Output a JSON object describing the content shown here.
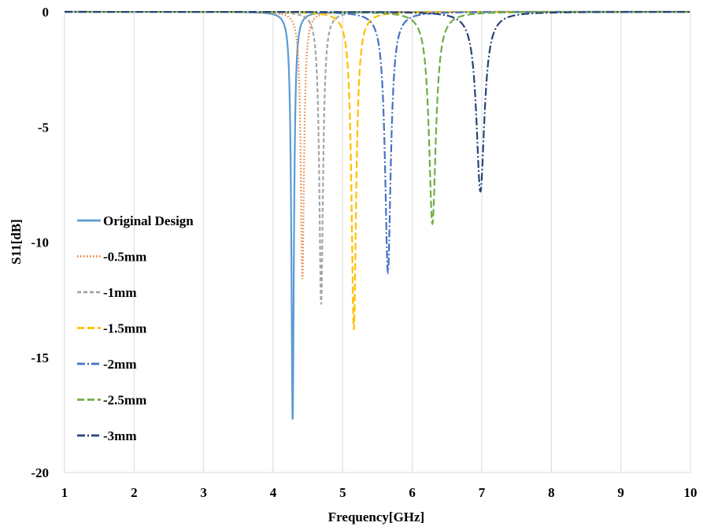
{
  "chart_data": {
    "type": "line",
    "title": "",
    "xlabel": "Frequency[GHz]",
    "ylabel": "S11[dB]",
    "xlim": [
      1,
      10
    ],
    "ylim": [
      -20,
      0
    ],
    "xticks": [
      1,
      2,
      3,
      4,
      5,
      6,
      7,
      8,
      9,
      10
    ],
    "yticks": [
      0,
      -5,
      -10,
      -15,
      -20
    ],
    "grid": "vertical",
    "legend_position": "left-inside",
    "series": [
      {
        "name": "Original Design",
        "color": "#5b9bd5",
        "dash": "solid",
        "resonance_ghz": 4.28,
        "min_db": -17.7,
        "width_ghz": 0.022
      },
      {
        "name": "-0.5mm",
        "color": "#ed7d31",
        "dash": "dotted",
        "resonance_ghz": 4.42,
        "min_db": -11.6,
        "width_ghz": 0.028
      },
      {
        "name": "-1mm",
        "color": "#a5a5a5",
        "dash": "dashed",
        "resonance_ghz": 4.69,
        "min_db": -12.7,
        "width_ghz": 0.032
      },
      {
        "name": "-1.5mm",
        "color": "#ffc000",
        "dash": "longdash",
        "resonance_ghz": 5.16,
        "min_db": -13.8,
        "width_ghz": 0.04
      },
      {
        "name": "-2mm",
        "color": "#4472c4",
        "dash": "dashdot",
        "resonance_ghz": 5.65,
        "min_db": -11.3,
        "width_ghz": 0.05
      },
      {
        "name": "-2.5mm",
        "color": "#70ad47",
        "dash": "longdash",
        "resonance_ghz": 6.29,
        "min_db": -9.2,
        "width_ghz": 0.06
      },
      {
        "name": "-3mm",
        "color": "#264478",
        "dash": "dashdot",
        "resonance_ghz": 6.98,
        "min_db": -7.8,
        "width_ghz": 0.07
      }
    ]
  }
}
